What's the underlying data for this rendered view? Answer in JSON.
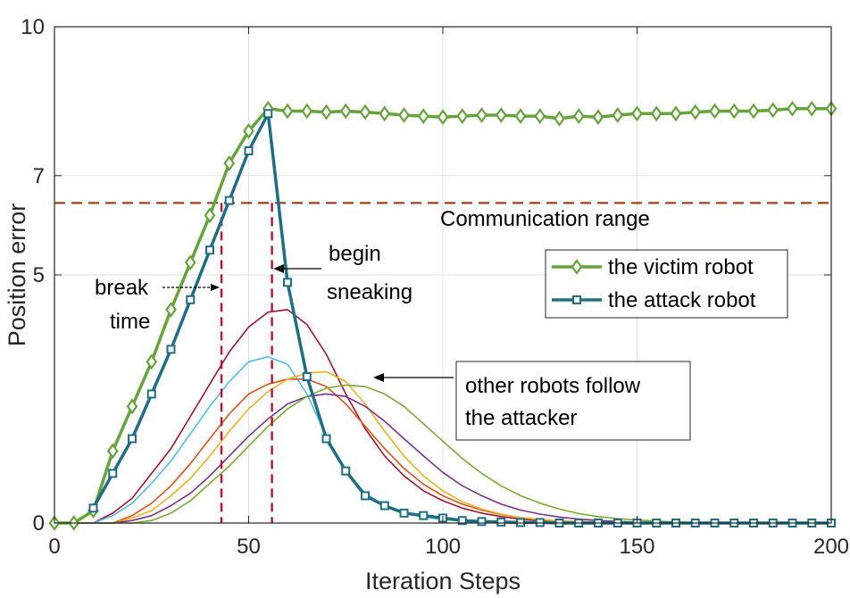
{
  "chart_data": {
    "type": "line",
    "xlabel": "Iteration Steps",
    "ylabel": "Position error",
    "xlim": [
      0,
      200
    ],
    "ylim": [
      0,
      10
    ],
    "xticks": [
      0,
      50,
      100,
      150,
      200
    ],
    "yticks": [
      0,
      5,
      7,
      10
    ],
    "xtick_labels": [
      "0",
      "50",
      "100",
      "150",
      "200"
    ],
    "ytick_labels": [
      "0",
      "5",
      "7",
      "10"
    ],
    "grid": true,
    "legend_position": "right",
    "threshold": {
      "value": 6.45,
      "label": "Communication range",
      "color": "#a0401a"
    },
    "markers_vertical": [
      {
        "x": 43,
        "label_lines": [
          "break",
          "time"
        ]
      },
      {
        "x": 56,
        "label_lines": [
          "begin",
          "sneaking"
        ]
      }
    ],
    "annotation_other": {
      "lines": [
        "other robots follow",
        "the attacker"
      ]
    },
    "series": [
      {
        "name": "the victim robot",
        "color": "#65a33b",
        "marker": "diamond",
        "x": [
          0,
          5,
          10,
          15,
          20,
          25,
          30,
          35,
          40,
          45,
          50,
          55,
          60,
          65,
          70,
          75,
          80,
          85,
          90,
          95,
          100,
          105,
          110,
          115,
          120,
          125,
          130,
          135,
          140,
          145,
          150,
          155,
          160,
          165,
          170,
          175,
          180,
          185,
          190,
          195,
          200
        ],
        "y": [
          0,
          0,
          0.25,
          1.45,
          2.35,
          3.25,
          4.3,
          5.25,
          6.2,
          7.25,
          7.9,
          8.35,
          8.3,
          8.3,
          8.28,
          8.3,
          8.28,
          8.25,
          8.22,
          8.2,
          8.18,
          8.2,
          8.22,
          8.22,
          8.2,
          8.2,
          8.15,
          8.2,
          8.18,
          8.22,
          8.25,
          8.25,
          8.25,
          8.28,
          8.3,
          8.3,
          8.3,
          8.32,
          8.35,
          8.35,
          8.35
        ]
      },
      {
        "name": "the attack robot",
        "color": "#1f6e86",
        "marker": "square",
        "x": [
          10,
          15,
          20,
          25,
          30,
          35,
          40,
          45,
          50,
          55,
          60,
          65,
          70,
          75,
          80,
          85,
          90,
          95,
          100,
          105,
          110,
          115,
          120,
          125,
          130,
          135,
          140,
          145,
          150,
          155,
          160,
          165,
          170,
          175,
          180,
          185,
          190,
          195,
          200
        ],
        "y": [
          0.3,
          1.0,
          1.7,
          2.6,
          3.5,
          4.5,
          5.5,
          6.5,
          7.5,
          8.25,
          4.85,
          2.95,
          1.7,
          1.05,
          0.55,
          0.35,
          0.2,
          0.15,
          0.1,
          0.05,
          0.03,
          0.02,
          0.01,
          0.01,
          0,
          0,
          0,
          0,
          0,
          0,
          0,
          0,
          0,
          0,
          0,
          0,
          0,
          0,
          0
        ]
      },
      {
        "color": "#a2142f",
        "x": [
          0,
          10,
          15,
          20,
          25,
          30,
          35,
          40,
          45,
          50,
          55,
          60,
          65,
          70,
          75,
          80,
          85,
          90,
          95,
          100,
          105,
          110,
          115,
          120,
          125,
          130,
          135,
          140,
          145,
          150
        ],
        "y": [
          0,
          0,
          0.2,
          0.5,
          1.0,
          1.5,
          2.15,
          2.8,
          3.45,
          3.95,
          4.25,
          4.3,
          4.0,
          3.4,
          2.6,
          1.9,
          1.35,
          0.95,
          0.65,
          0.45,
          0.3,
          0.2,
          0.13,
          0.08,
          0.05,
          0.03,
          0.02,
          0.01,
          0.01,
          0
        ]
      },
      {
        "color": "#4dbeee",
        "x": [
          0,
          10,
          15,
          20,
          25,
          30,
          35,
          40,
          45,
          50,
          55,
          60,
          65,
          70,
          75,
          80,
          85,
          90,
          95,
          100,
          105,
          110,
          115,
          120,
          125,
          130
        ],
        "y": [
          0,
          0,
          0.15,
          0.4,
          0.8,
          1.25,
          1.8,
          2.35,
          2.85,
          3.25,
          3.35,
          3.2,
          2.6,
          1.75,
          1.05,
          0.6,
          0.35,
          0.2,
          0.12,
          0.07,
          0.04,
          0.02,
          0.01,
          0.01,
          0,
          0
        ]
      },
      {
        "color": "#d95319",
        "x": [
          0,
          15,
          20,
          25,
          30,
          35,
          40,
          45,
          50,
          55,
          60,
          65,
          70,
          75,
          80,
          85,
          90,
          95,
          100,
          105,
          110,
          115,
          120,
          125,
          130,
          135,
          140,
          145,
          150
        ],
        "y": [
          0,
          0,
          0.15,
          0.4,
          0.75,
          1.2,
          1.7,
          2.2,
          2.6,
          2.8,
          2.9,
          2.9,
          2.75,
          2.4,
          1.95,
          1.5,
          1.1,
          0.78,
          0.55,
          0.38,
          0.26,
          0.17,
          0.11,
          0.07,
          0.04,
          0.03,
          0.02,
          0.01,
          0
        ]
      },
      {
        "color": "#edb120",
        "x": [
          0,
          15,
          20,
          25,
          30,
          35,
          40,
          45,
          50,
          55,
          60,
          65,
          70,
          75,
          80,
          85,
          90,
          95,
          100,
          105,
          110,
          115,
          120,
          125,
          130,
          135,
          140,
          145,
          150
        ],
        "y": [
          0,
          0,
          0.1,
          0.25,
          0.55,
          0.9,
          1.35,
          1.85,
          2.3,
          2.65,
          2.9,
          3.02,
          3.05,
          2.85,
          2.4,
          1.85,
          1.35,
          0.95,
          0.65,
          0.43,
          0.28,
          0.18,
          0.11,
          0.07,
          0.04,
          0.03,
          0.02,
          0.01,
          0
        ]
      },
      {
        "color": "#7e2f8e",
        "x": [
          0,
          15,
          20,
          25,
          30,
          35,
          40,
          45,
          50,
          55,
          60,
          65,
          70,
          75,
          80,
          85,
          90,
          95,
          100,
          105,
          110,
          115,
          120,
          125,
          130,
          135,
          140,
          145,
          150,
          155,
          160
        ],
        "y": [
          0,
          0,
          0.05,
          0.15,
          0.35,
          0.6,
          0.95,
          1.35,
          1.75,
          2.1,
          2.4,
          2.55,
          2.6,
          2.55,
          2.35,
          2.05,
          1.7,
          1.35,
          1.02,
          0.75,
          0.55,
          0.38,
          0.26,
          0.18,
          0.12,
          0.08,
          0.05,
          0.03,
          0.02,
          0.01,
          0
        ]
      },
      {
        "color": "#77ac30",
        "x": [
          0,
          20,
          25,
          30,
          35,
          40,
          45,
          50,
          55,
          60,
          65,
          70,
          75,
          80,
          85,
          90,
          95,
          100,
          105,
          110,
          115,
          120,
          125,
          130,
          135,
          140,
          145,
          150,
          155,
          160,
          165,
          170
        ],
        "y": [
          0,
          0,
          0.05,
          0.2,
          0.45,
          0.8,
          1.15,
          1.55,
          1.95,
          2.3,
          2.55,
          2.72,
          2.78,
          2.75,
          2.6,
          2.35,
          2.0,
          1.65,
          1.3,
          1.0,
          0.75,
          0.55,
          0.4,
          0.28,
          0.19,
          0.13,
          0.09,
          0.06,
          0.04,
          0.02,
          0.01,
          0
        ]
      }
    ]
  }
}
